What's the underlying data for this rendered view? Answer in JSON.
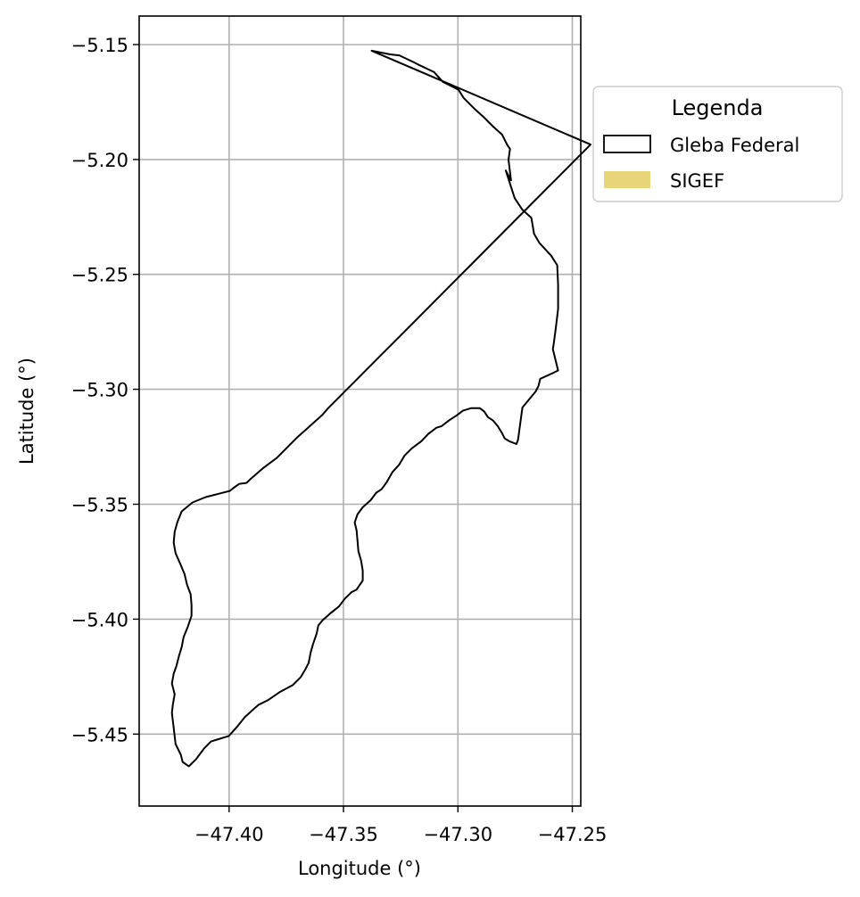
{
  "chart_data": {
    "type": "map",
    "xlabel": "Longitude (°)",
    "ylabel": "Latitude (°)",
    "xlim": [
      -47.4393,
      -47.2463
    ],
    "ylim": [
      -5.4813,
      -5.1376
    ],
    "grid": true,
    "xticks": [
      {
        "value": -47.4,
        "label": "−47.40"
      },
      {
        "value": -47.35,
        "label": "−47.35"
      },
      {
        "value": -47.3,
        "label": "−47.30"
      },
      {
        "value": -47.25,
        "label": "−47.25"
      }
    ],
    "yticks": [
      {
        "value": -5.15,
        "label": "−5.15"
      },
      {
        "value": -5.2,
        "label": "−5.20"
      },
      {
        "value": -5.25,
        "label": "−5.25"
      },
      {
        "value": -5.3,
        "label": "−5.30"
      },
      {
        "value": -5.35,
        "label": "−5.35"
      },
      {
        "value": -5.4,
        "label": "−5.40"
      },
      {
        "value": -5.45,
        "label": "−5.45"
      }
    ],
    "legend": {
      "title": "Legenda",
      "placement": "outside-top-right",
      "entries": [
        {
          "label": "Gleba Federal",
          "style": "outline",
          "color": "#000000"
        },
        {
          "label": "SIGEF",
          "style": "fill",
          "color": "#e8d57a"
        }
      ]
    },
    "layers": {
      "gleba_federal": {
        "name": "Gleba Federal",
        "stroke": "#000000",
        "rings": [
          [
            [
              -47.3377,
              -5.1527
            ],
            [
              -47.3296,
              -5.1543
            ],
            [
              -47.3256,
              -5.1547
            ],
            [
              -47.319,
              -5.1578
            ],
            [
              -47.3167,
              -5.159
            ],
            [
              -47.3104,
              -5.162
            ],
            [
              -47.3066,
              -5.1662
            ],
            [
              -47.2997,
              -5.1697
            ],
            [
              -47.2975,
              -5.1732
            ],
            [
              -47.2963,
              -5.1744
            ],
            [
              -47.2924,
              -5.1783
            ],
            [
              -47.2885,
              -5.1818
            ],
            [
              -47.2846,
              -5.1857
            ],
            [
              -47.2807,
              -5.1892
            ],
            [
              -47.2783,
              -5.1939
            ],
            [
              -47.2772,
              -5.1954
            ],
            [
              -47.2779,
              -5.2001
            ],
            [
              -47.2768,
              -5.2091
            ],
            [
              -47.2791,
              -5.2048
            ],
            [
              -47.2752,
              -5.2168
            ],
            [
              -47.2718,
              -5.2219
            ],
            [
              -47.2679,
              -5.2254
            ],
            [
              -47.2667,
              -5.2324
            ],
            [
              -47.2644,
              -5.2363
            ],
            [
              -47.2593,
              -5.2418
            ],
            [
              -47.2566,
              -5.246
            ],
            [
              -47.2562,
              -5.2546
            ],
            [
              -47.2562,
              -5.265
            ],
            [
              -47.2573,
              -5.274
            ],
            [
              -47.2581,
              -5.2802
            ],
            [
              -47.2585,
              -5.2825
            ],
            [
              -47.2562,
              -5.2918
            ],
            [
              -47.2589,
              -5.2931
            ],
            [
              -47.264,
              -5.2954
            ],
            [
              -47.2648,
              -5.2985
            ],
            [
              -47.266,
              -5.3009
            ],
            [
              -47.2718,
              -5.3079
            ],
            [
              -47.2737,
              -5.3219
            ],
            [
              -47.2744,
              -5.3238
            ],
            [
              -47.2775,
              -5.3226
            ],
            [
              -47.2795,
              -5.3214
            ],
            [
              -47.2807,
              -5.3191
            ],
            [
              -47.2826,
              -5.316
            ],
            [
              -47.2846,
              -5.3136
            ],
            [
              -47.2869,
              -5.3121
            ],
            [
              -47.2885,
              -5.3097
            ],
            [
              -47.2904,
              -5.3082
            ],
            [
              -47.2943,
              -5.3082
            ],
            [
              -47.2978,
              -5.3093
            ],
            [
              -47.3005,
              -5.3113
            ],
            [
              -47.304,
              -5.3136
            ],
            [
              -47.3071,
              -5.316
            ],
            [
              -47.3094,
              -5.3167
            ],
            [
              -47.3129,
              -5.3194
            ],
            [
              -47.316,
              -5.3226
            ],
            [
              -47.3202,
              -5.3257
            ],
            [
              -47.3233,
              -5.3288
            ],
            [
              -47.3256,
              -5.3327
            ],
            [
              -47.3287,
              -5.3361
            ],
            [
              -47.3311,
              -5.3404
            ],
            [
              -47.3334,
              -5.3435
            ],
            [
              -47.3357,
              -5.345
            ],
            [
              -47.3381,
              -5.3482
            ],
            [
              -47.3416,
              -5.3513
            ],
            [
              -47.3439,
              -5.3544
            ],
            [
              -47.3451,
              -5.3579
            ],
            [
              -47.3443,
              -5.3614
            ],
            [
              -47.3439,
              -5.3657
            ],
            [
              -47.3435,
              -5.3704
            ],
            [
              -47.3423,
              -5.3746
            ],
            [
              -47.3416,
              -5.3789
            ],
            [
              -47.3416,
              -5.3832
            ],
            [
              -47.3443,
              -5.3871
            ],
            [
              -47.3466,
              -5.3883
            ],
            [
              -47.3493,
              -5.391
            ],
            [
              -47.352,
              -5.3945
            ],
            [
              -47.3559,
              -5.3976
            ],
            [
              -47.359,
              -5.4003
            ],
            [
              -47.361,
              -5.4027
            ],
            [
              -47.3617,
              -5.4062
            ],
            [
              -47.3633,
              -5.4108
            ],
            [
              -47.3644,
              -5.4147
            ],
            [
              -47.3652,
              -5.419
            ],
            [
              -47.3668,
              -5.4221
            ],
            [
              -47.3687,
              -5.4252
            ],
            [
              -47.3722,
              -5.4287
            ],
            [
              -47.378,
              -5.4318
            ],
            [
              -47.3831,
              -5.4353
            ],
            [
              -47.387,
              -5.4372
            ],
            [
              -47.3889,
              -5.4388
            ],
            [
              -47.3932,
              -5.4427
            ],
            [
              -47.3967,
              -5.447
            ],
            [
              -47.4001,
              -5.4508
            ],
            [
              -47.404,
              -5.452
            ],
            [
              -47.4079,
              -5.4532
            ],
            [
              -47.411,
              -5.4563
            ],
            [
              -47.4145,
              -5.461
            ],
            [
              -47.4176,
              -5.464
            ],
            [
              -47.4203,
              -5.4621
            ],
            [
              -47.4211,
              -5.459
            ],
            [
              -47.4234,
              -5.4543
            ],
            [
              -47.4242,
              -5.4473
            ],
            [
              -47.425,
              -5.4408
            ],
            [
              -47.4246,
              -5.4373
            ],
            [
              -47.4238,
              -5.4327
            ],
            [
              -47.425,
              -5.428
            ],
            [
              -47.4242,
              -5.4237
            ],
            [
              -47.423,
              -5.4203
            ],
            [
              -47.4219,
              -5.416
            ],
            [
              -47.4207,
              -5.4121
            ],
            [
              -47.4199,
              -5.4078
            ],
            [
              -47.418,
              -5.4032
            ],
            [
              -47.4164,
              -5.3985
            ],
            [
              -47.4164,
              -5.3939
            ],
            [
              -47.4168,
              -5.3892
            ],
            [
              -47.4184,
              -5.3849
            ],
            [
              -47.4195,
              -5.3803
            ],
            [
              -47.4215,
              -5.3756
            ],
            [
              -47.4234,
              -5.3713
            ],
            [
              -47.4242,
              -5.3667
            ],
            [
              -47.4238,
              -5.362
            ],
            [
              -47.4226,
              -5.3578
            ],
            [
              -47.4207,
              -5.3531
            ],
            [
              -47.416,
              -5.3492
            ],
            [
              -47.4102,
              -5.3469
            ],
            [
              -47.4044,
              -5.3454
            ],
            [
              -47.3997,
              -5.3442
            ],
            [
              -47.3982,
              -5.343
            ],
            [
              -47.3955,
              -5.3411
            ],
            [
              -47.3924,
              -5.3407
            ],
            [
              -47.3904,
              -5.3388
            ],
            [
              -47.3877,
              -5.3365
            ],
            [
              -47.3854,
              -5.3345
            ],
            [
              -47.3823,
              -5.3322
            ],
            [
              -47.3792,
              -5.3299
            ],
            [
              -47.3761,
              -5.3268
            ],
            [
              -47.373,
              -5.3237
            ],
            [
              -47.3699,
              -5.3206
            ],
            [
              -47.3664,
              -5.3175
            ],
            [
              -47.3629,
              -5.3144
            ],
            [
              -47.3594,
              -5.3113
            ],
            [
              -47.3567,
              -5.3082
            ],
            [
              -47.3536,
              -5.3051
            ],
            [
              -47.3505,
              -5.302
            ],
            [
              -47.3474,
              -5.2989
            ],
            [
              -47.3443,
              -5.2958
            ],
            [
              -47.3412,
              -5.2927
            ],
            [
              -47.3381,
              -5.2896
            ],
            [
              -47.335,
              -5.2865
            ],
            [
              -47.3319,
              -5.2834
            ],
            [
              -47.3288,
              -5.2803
            ],
            [
              -47.3257,
              -5.2772
            ],
            [
              -47.3226,
              -5.2741
            ],
            [
              -47.3195,
              -5.271
            ],
            [
              -47.3164,
              -5.2679
            ],
            [
              -47.3133,
              -5.2648
            ],
            [
              -47.3102,
              -5.2617
            ],
            [
              -47.3071,
              -5.2586
            ],
            [
              -47.304,
              -5.2555
            ],
            [
              -47.3009,
              -5.2524
            ],
            [
              -47.2978,
              -5.2493
            ],
            [
              -47.2947,
              -5.2462
            ],
            [
              -47.2916,
              -5.2431
            ],
            [
              -47.2885,
              -5.24
            ],
            [
              -47.2854,
              -5.2369
            ],
            [
              -47.2823,
              -5.2338
            ],
            [
              -47.2792,
              -5.2307
            ],
            [
              -47.2761,
              -5.2276
            ],
            [
              -47.273,
              -5.2245
            ],
            [
              -47.2699,
              -5.2214
            ],
            [
              -47.2668,
              -5.2183
            ],
            [
              -47.2637,
              -5.2152
            ],
            [
              -47.2606,
              -5.2121
            ],
            [
              -47.2575,
              -5.209
            ],
            [
              -47.2544,
              -5.2059
            ],
            [
              -47.2513,
              -5.2028
            ],
            [
              -47.2482,
              -5.1997
            ],
            [
              -47.2451,
              -5.1966
            ],
            [
              -47.242,
              -5.1935
            ]
          ]
        ]
      }
    }
  }
}
